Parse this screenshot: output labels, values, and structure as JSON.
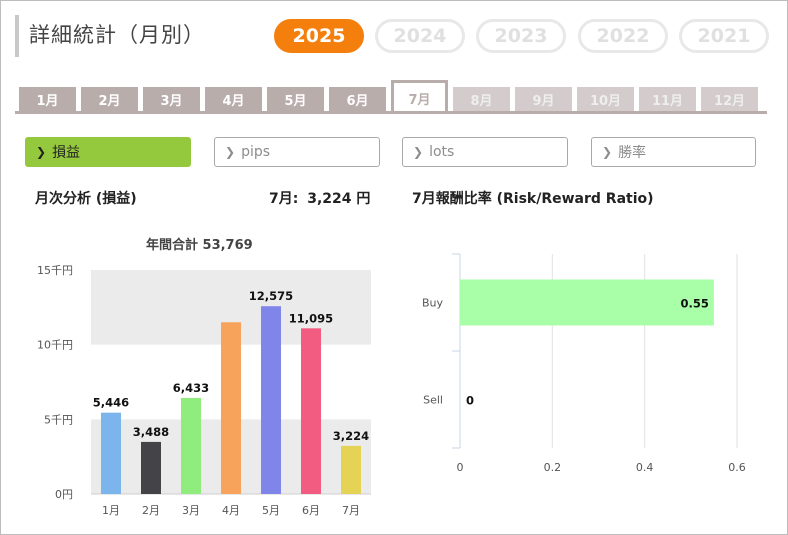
{
  "page_title": "詳細統計（月別）",
  "years": [
    {
      "label": "2025",
      "active": true
    },
    {
      "label": "2024",
      "active": false
    },
    {
      "label": "2023",
      "active": false
    },
    {
      "label": "2022",
      "active": false
    },
    {
      "label": "2021",
      "active": false
    }
  ],
  "months": [
    {
      "label": "1月",
      "state": "normal"
    },
    {
      "label": "2月",
      "state": "normal"
    },
    {
      "label": "3月",
      "state": "normal"
    },
    {
      "label": "4月",
      "state": "normal"
    },
    {
      "label": "5月",
      "state": "normal"
    },
    {
      "label": "6月",
      "state": "normal"
    },
    {
      "label": "7月",
      "state": "active"
    },
    {
      "label": "8月",
      "state": "disabled"
    },
    {
      "label": "9月",
      "state": "disabled"
    },
    {
      "label": "10月",
      "state": "disabled"
    },
    {
      "label": "11月",
      "state": "disabled"
    },
    {
      "label": "12月",
      "state": "disabled"
    }
  ],
  "filters": [
    {
      "label": "損益",
      "active": true
    },
    {
      "label": "pips",
      "active": false
    },
    {
      "label": "lots",
      "active": false
    },
    {
      "label": "勝率",
      "active": false
    }
  ],
  "left_panel": {
    "title": "月次分析 (損益)",
    "current_label": "7月:",
    "current_value": "3,224 円"
  },
  "right_panel": {
    "title": "7月報酬比率 (Risk/Reward Ratio)"
  },
  "colors": {
    "accent_orange": "#f57f0c",
    "filter_active_green": "#95c93d",
    "tab_gray": "#b9adac"
  },
  "chart_data": [
    {
      "type": "bar",
      "title": "年間合計 53,769",
      "categories": [
        "1月",
        "2月",
        "3月",
        "4月",
        "5月",
        "6月",
        "7月"
      ],
      "values": [
        5446,
        3488,
        6433,
        11500,
        12575,
        11095,
        3224
      ],
      "data_labels": [
        "5,446",
        "3,488",
        "6,433",
        "",
        "12,575",
        "11,095",
        "3,224"
      ],
      "bar_colors": [
        "#7cb5ec",
        "#434348",
        "#90ed7d",
        "#f7a35c",
        "#8085e9",
        "#f15c80",
        "#e4d354"
      ],
      "yticks": [
        0,
        5000,
        10000,
        15000
      ],
      "ytick_labels": [
        "0円",
        "5千円",
        "10千円",
        "15千円"
      ],
      "ylim": [
        0,
        15000
      ],
      "grid": "alternating bands",
      "legend": "none"
    },
    {
      "type": "bar",
      "orientation": "horizontal",
      "categories": [
        "Buy",
        "Sell"
      ],
      "values": [
        0.55,
        0
      ],
      "data_labels": [
        "0.55",
        "0"
      ],
      "xticks": [
        0,
        0.2,
        0.4,
        0.6
      ],
      "xtick_labels": [
        "0",
        "0.2",
        "0.4",
        "0.6"
      ],
      "xlim": [
        0,
        0.6
      ],
      "bar_color": "#a8ffa8",
      "grid": "vertical lines",
      "legend": "none"
    }
  ]
}
